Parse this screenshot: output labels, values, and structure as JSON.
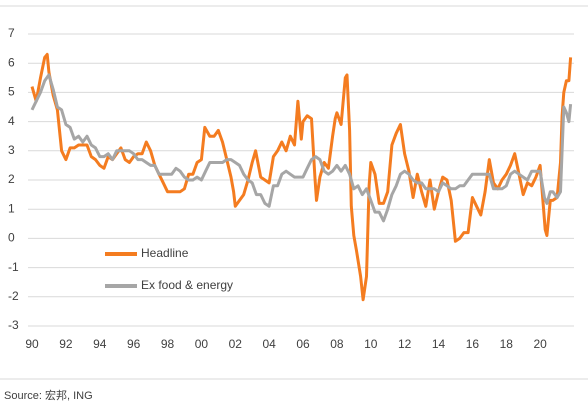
{
  "chart_data": {
    "type": "line",
    "series": [
      {
        "name": "Headline",
        "color": "#f47c20",
        "x": [
          1990.0,
          1990.25,
          1990.5,
          1990.75,
          1990.9,
          1991.0,
          1991.25,
          1991.5,
          1991.75,
          1992.0,
          1992.25,
          1992.5,
          1992.75,
          1993.0,
          1993.25,
          1993.5,
          1993.75,
          1994.0,
          1994.25,
          1994.5,
          1994.75,
          1995.0,
          1995.25,
          1995.5,
          1995.75,
          1996.0,
          1996.25,
          1996.5,
          1996.75,
          1997.0,
          1997.25,
          1997.5,
          1997.75,
          1998.0,
          1998.25,
          1998.5,
          1998.75,
          1999.0,
          1999.25,
          1999.5,
          1999.75,
          2000.0,
          2000.2,
          2000.5,
          2000.75,
          2001.0,
          2001.25,
          2001.5,
          2001.75,
          2001.9,
          2002.0,
          2002.25,
          2002.5,
          2002.75,
          2003.0,
          2003.2,
          2003.5,
          2003.75,
          2004.0,
          2004.25,
          2004.5,
          2004.75,
          2005.0,
          2005.25,
          2005.5,
          2005.7,
          2005.9,
          2006.0,
          2006.25,
          2006.5,
          2006.7,
          2006.8,
          2007.0,
          2007.25,
          2007.5,
          2007.75,
          2007.9,
          2008.0,
          2008.25,
          2008.5,
          2008.6,
          2008.75,
          2008.85,
          2009.0,
          2009.15,
          2009.4,
          2009.55,
          2009.75,
          2009.9,
          2010.0,
          2010.25,
          2010.5,
          2010.75,
          2011.0,
          2011.25,
          2011.5,
          2011.75,
          2012.0,
          2012.25,
          2012.5,
          2012.75,
          2013.0,
          2013.25,
          2013.5,
          2013.75,
          2014.0,
          2014.25,
          2014.5,
          2014.75,
          2015.0,
          2015.25,
          2015.5,
          2015.75,
          2016.0,
          2016.25,
          2016.5,
          2016.75,
          2017.0,
          2017.25,
          2017.5,
          2017.75,
          2018.0,
          2018.25,
          2018.5,
          2018.75,
          2019.0,
          2019.25,
          2019.5,
          2019.75,
          2020.0,
          2020.3,
          2020.4,
          2020.6,
          2020.75,
          2021.0,
          2021.2,
          2021.3,
          2021.4,
          2021.55,
          2021.7,
          2021.8
        ],
        "values": [
          5.2,
          4.7,
          5.5,
          6.2,
          6.3,
          5.7,
          4.9,
          4.4,
          3.0,
          2.7,
          3.1,
          3.1,
          3.2,
          3.2,
          3.2,
          2.8,
          2.7,
          2.5,
          2.4,
          2.8,
          2.7,
          2.9,
          3.1,
          2.7,
          2.6,
          2.8,
          2.9,
          2.9,
          3.3,
          3.0,
          2.5,
          2.2,
          1.9,
          1.6,
          1.6,
          1.6,
          1.6,
          1.7,
          2.2,
          2.2,
          2.6,
          2.7,
          3.8,
          3.5,
          3.5,
          3.7,
          3.3,
          2.7,
          2.1,
          1.6,
          1.1,
          1.3,
          1.5,
          2.0,
          2.6,
          3.0,
          2.1,
          2.0,
          1.9,
          2.8,
          3.0,
          3.3,
          3.0,
          3.5,
          3.2,
          4.7,
          3.4,
          4.0,
          4.2,
          4.1,
          2.1,
          1.3,
          2.1,
          2.6,
          2.4,
          3.5,
          4.1,
          4.3,
          3.9,
          5.5,
          5.6,
          3.7,
          1.1,
          0.1,
          -0.4,
          -1.3,
          -2.1,
          -1.3,
          1.8,
          2.6,
          2.2,
          1.2,
          1.2,
          1.6,
          3.2,
          3.6,
          3.9,
          2.9,
          2.3,
          1.4,
          2.2,
          1.6,
          1.1,
          2.0,
          1.0,
          1.6,
          2.1,
          2.0,
          1.3,
          -0.1,
          0.0,
          0.2,
          0.2,
          1.4,
          1.1,
          0.8,
          1.6,
          2.7,
          1.9,
          1.7,
          2.0,
          2.2,
          2.5,
          2.9,
          2.2,
          1.5,
          1.9,
          1.8,
          2.1,
          2.5,
          0.3,
          0.1,
          1.3,
          1.3,
          1.4,
          2.6,
          4.2,
          5.0,
          5.4,
          5.4,
          6.2
        ]
      },
      {
        "name": "Ex food & energy",
        "color": "#a6a6a6",
        "x": [
          1990.0,
          1990.25,
          1990.5,
          1990.75,
          1991.0,
          1991.25,
          1991.5,
          1991.75,
          1992.0,
          1992.25,
          1992.5,
          1992.75,
          1993.0,
          1993.25,
          1993.5,
          1993.75,
          1994.0,
          1994.25,
          1994.5,
          1994.75,
          1995.0,
          1995.25,
          1995.5,
          1995.75,
          1996.0,
          1996.25,
          1996.5,
          1996.75,
          1997.0,
          1997.25,
          1997.5,
          1997.75,
          1998.0,
          1998.25,
          1998.5,
          1998.75,
          1999.0,
          1999.25,
          1999.5,
          1999.75,
          2000.0,
          2000.25,
          2000.5,
          2000.75,
          2001.0,
          2001.25,
          2001.5,
          2001.75,
          2002.0,
          2002.25,
          2002.5,
          2002.75,
          2003.0,
          2003.25,
          2003.5,
          2003.75,
          2004.0,
          2004.25,
          2004.5,
          2004.75,
          2005.0,
          2005.25,
          2005.5,
          2005.75,
          2006.0,
          2006.25,
          2006.5,
          2006.75,
          2007.0,
          2007.25,
          2007.5,
          2007.75,
          2008.0,
          2008.25,
          2008.5,
          2008.75,
          2009.0,
          2009.25,
          2009.5,
          2009.75,
          2010.0,
          2010.25,
          2010.5,
          2010.75,
          2011.0,
          2011.25,
          2011.5,
          2011.75,
          2012.0,
          2012.25,
          2012.5,
          2012.75,
          2013.0,
          2013.25,
          2013.5,
          2013.75,
          2014.0,
          2014.25,
          2014.5,
          2014.75,
          2015.0,
          2015.25,
          2015.5,
          2015.75,
          2016.0,
          2016.25,
          2016.5,
          2016.75,
          2017.0,
          2017.25,
          2017.5,
          2017.75,
          2018.0,
          2018.25,
          2018.5,
          2018.75,
          2019.0,
          2019.25,
          2019.5,
          2019.75,
          2020.0,
          2020.25,
          2020.4,
          2020.6,
          2020.75,
          2021.0,
          2021.2,
          2021.3,
          2021.4,
          2021.55,
          2021.7,
          2021.8
        ],
        "values": [
          4.4,
          4.7,
          5.0,
          5.4,
          5.6,
          5.1,
          4.5,
          4.4,
          3.9,
          3.8,
          3.4,
          3.5,
          3.3,
          3.5,
          3.2,
          3.1,
          2.8,
          2.8,
          2.9,
          2.7,
          3.0,
          3.0,
          3.0,
          3.0,
          2.9,
          2.7,
          2.7,
          2.6,
          2.5,
          2.5,
          2.2,
          2.2,
          2.2,
          2.2,
          2.4,
          2.3,
          2.1,
          2.0,
          2.0,
          2.1,
          2.0,
          2.3,
          2.6,
          2.6,
          2.6,
          2.6,
          2.7,
          2.7,
          2.6,
          2.5,
          2.2,
          2.0,
          1.9,
          1.5,
          1.5,
          1.2,
          1.1,
          1.8,
          1.8,
          2.2,
          2.3,
          2.2,
          2.1,
          2.1,
          2.1,
          2.4,
          2.7,
          2.8,
          2.7,
          2.3,
          2.2,
          2.3,
          2.5,
          2.3,
          2.5,
          2.2,
          1.7,
          1.8,
          1.5,
          1.7,
          1.3,
          0.9,
          0.9,
          0.6,
          1.0,
          1.5,
          1.8,
          2.2,
          2.3,
          2.2,
          2.0,
          1.9,
          1.9,
          1.7,
          1.7,
          1.7,
          1.6,
          1.9,
          1.8,
          1.7,
          1.7,
          1.8,
          1.8,
          2.0,
          2.2,
          2.2,
          2.2,
          2.2,
          2.2,
          1.7,
          1.7,
          1.7,
          1.8,
          2.2,
          2.3,
          2.2,
          2.1,
          2.0,
          2.3,
          2.3,
          2.3,
          1.4,
          1.2,
          1.6,
          1.6,
          1.4,
          1.6,
          3.0,
          4.5,
          4.3,
          4.0,
          4.6
        ]
      }
    ],
    "xlim": [
      1990,
      2022
    ],
    "xticks": [
      {
        "value": 1990,
        "label": "90"
      },
      {
        "value": 1992,
        "label": "92"
      },
      {
        "value": 1994,
        "label": "94"
      },
      {
        "value": 1996,
        "label": "96"
      },
      {
        "value": 1998,
        "label": "98"
      },
      {
        "value": 2000,
        "label": "00"
      },
      {
        "value": 2002,
        "label": "02"
      },
      {
        "value": 2004,
        "label": "04"
      },
      {
        "value": 2006,
        "label": "06"
      },
      {
        "value": 2008,
        "label": "08"
      },
      {
        "value": 2010,
        "label": "10"
      },
      {
        "value": 2012,
        "label": "12"
      },
      {
        "value": 2014,
        "label": "14"
      },
      {
        "value": 2016,
        "label": "16"
      },
      {
        "value": 2018,
        "label": "18"
      },
      {
        "value": 2020,
        "label": "20"
      }
    ],
    "ylim": [
      -3,
      7
    ],
    "yticks": [
      -3,
      -2,
      -1,
      0,
      1,
      2,
      3,
      4,
      5,
      6,
      7
    ],
    "grid": true,
    "source": "Source: 宏邦, ING"
  }
}
